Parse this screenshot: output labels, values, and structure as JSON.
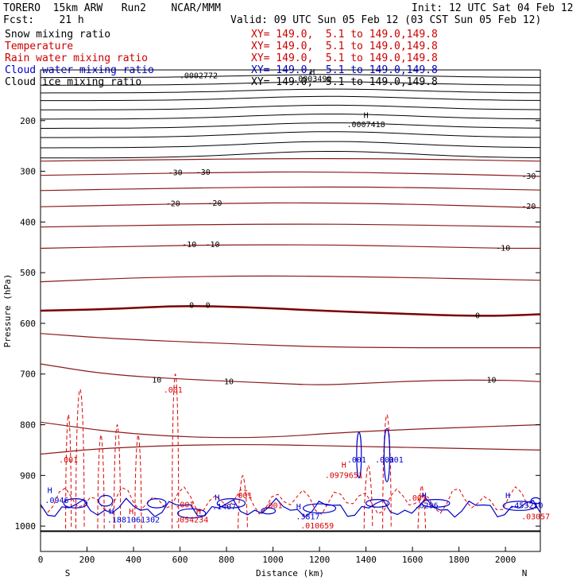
{
  "header": {
    "model": "TORERO  15km ARW   Run2    NCAR/MMM",
    "init": "Init: 12 UTC Sat 04 Feb 12",
    "fcst": "Fcst:    21 h",
    "valid": "Valid: 09 UTC Sun 05 Feb 12 (03 CST Sun 05 Feb 12)"
  },
  "fields": [
    {
      "name": "Snow mixing ratio",
      "xy": "XY= 149.0,  5.1 to 149.0,149.8",
      "color": "#000000"
    },
    {
      "name": "Temperature",
      "xy": "XY= 149.0,  5.1 to 149.0,149.8",
      "color": "#cc0000"
    },
    {
      "name": "Rain water mixing ratio",
      "xy": "XY= 149.0,  5.1 to 149.0,149.8",
      "color": "#cc0000"
    },
    {
      "name": "Cloud water mixing ratio",
      "xy": "XY= 149.0,  5.1 to 149.0,149.8",
      "color": "#0000cc"
    },
    {
      "name": "Cloud ice mixing ratio",
      "xy": "XY= 149.0,  5.1 to 149.0,149.8",
      "color": "#000000"
    }
  ],
  "colors": {
    "temperature_contour": "#8b1a1a",
    "zero_isotherm": "#7a0000",
    "rain": "#dd0000",
    "cloud_water": "#0000cc",
    "ground": "#000000"
  },
  "chart_data": {
    "type": "line",
    "xlabel": "Distance (km)",
    "ylabel": "Pressure (hPa)",
    "xlim": [
      0,
      2150
    ],
    "ylim": [
      1050,
      100
    ],
    "x_ticks": [
      0,
      200,
      400,
      600,
      800,
      1000,
      1200,
      1400,
      1600,
      1800,
      2000
    ],
    "y_ticks": [
      200,
      300,
      400,
      500,
      600,
      700,
      800,
      900,
      1000
    ],
    "orientation_left": "S",
    "orientation_right": "N",
    "temperature_isotherms": [
      {
        "value": 10,
        "label": "10",
        "x": [
          0,
          300,
          700,
          1000,
          1200,
          1400,
          1700,
          2000,
          2150
        ],
        "p": [
          680,
          702,
          712,
          718,
          722,
          718,
          712,
          712,
          715
        ]
      },
      {
        "value": 0,
        "label": "0",
        "x": [
          0,
          300,
          600,
          900,
          1200,
          1500,
          1800,
          2000,
          2150
        ],
        "p": [
          575,
          572,
          565,
          568,
          575,
          580,
          585,
          585,
          582
        ]
      },
      {
        "value": -10,
        "label": "-10",
        "x": [
          0,
          400,
          800,
          1200,
          1600,
          2000,
          2150
        ],
        "p": [
          452,
          448,
          445,
          445,
          448,
          452,
          452
        ]
      },
      {
        "value": -20,
        "label": "-20",
        "x": [
          0,
          400,
          800,
          1200,
          1600,
          2000,
          2150
        ],
        "p": [
          370,
          366,
          363,
          362,
          365,
          370,
          372
        ]
      },
      {
        "value": -30,
        "label": "-30",
        "x": [
          0,
          400,
          800,
          1200,
          1600,
          2000,
          2150
        ],
        "p": [
          308,
          305,
          302,
          301,
          304,
          308,
          310
        ]
      }
    ],
    "temperature_labels": [
      {
        "text": "10",
        "x": 500,
        "p": 712
      },
      {
        "text": "10",
        "x": 810,
        "p": 715
      },
      {
        "text": "10",
        "x": 1940,
        "p": 712
      },
      {
        "text": "0",
        "x": 650,
        "p": 565
      },
      {
        "text": "0",
        "x": 720,
        "p": 565
      },
      {
        "text": "0",
        "x": 1880,
        "p": 585
      },
      {
        "text": "-10",
        "x": 640,
        "p": 445
      },
      {
        "text": "-10",
        "x": 740,
        "p": 445
      },
      {
        "text": "-10",
        "x": 1990,
        "p": 452
      },
      {
        "text": "-20",
        "x": 570,
        "p": 364
      },
      {
        "text": "-20",
        "x": 750,
        "p": 363
      },
      {
        "text": "-20",
        "x": 2100,
        "p": 370
      },
      {
        "text": "-30",
        "x": 580,
        "p": 303
      },
      {
        "text": "-30",
        "x": 700,
        "p": 302
      },
      {
        "text": "-30",
        "x": 2100,
        "p": 310
      }
    ],
    "snow_annotations": [
      {
        "text": "H",
        "x": 1400,
        "p": 190
      },
      {
        "text": ".0007418",
        "x": 1400,
        "p": 208
      },
      {
        "text": "H",
        "x": 1170,
        "p": 105
      },
      {
        "text": ".0003499",
        "x": 1170,
        "p": 118
      },
      {
        "text": ".0002772",
        "x": 680,
        "p": 112
      }
    ],
    "rain_annotations": [
      {
        "text": ".001",
        "x": 120,
        "p": 870
      },
      {
        "text": ".001",
        "x": 570,
        "p": 732
      },
      {
        "text": "H",
        "x": 1305,
        "p": 880
      },
      {
        "text": ".0979651",
        "x": 1305,
        "p": 900
      },
      {
        "text": ".001",
        "x": 870,
        "p": 940
      },
      {
        "text": ".001",
        "x": 1000,
        "p": 960
      },
      {
        "text": ".001",
        "x": 620,
        "p": 958
      },
      {
        "text": "H",
        "x": 390,
        "p": 972
      },
      {
        "text": "H",
        "x": 680,
        "p": 972
      },
      {
        "text": ".054234",
        "x": 650,
        "p": 988
      },
      {
        "text": ".010659",
        "x": 1190,
        "p": 1000
      },
      {
        "text": ".001",
        "x": 1620,
        "p": 945
      },
      {
        "text": ".03057",
        "x": 2130,
        "p": 982
      }
    ],
    "cloud_annotations": [
      {
        "text": "H",
        "x": 40,
        "p": 930
      },
      {
        "text": ".0946",
        "x": 70,
        "p": 950
      },
      {
        "text": ".001",
        "x": 1360,
        "p": 870
      },
      {
        "text": ".001",
        "x": 1480,
        "p": 870
      },
      {
        "text": ".001",
        "x": 1520,
        "p": 870
      },
      {
        "text": "H",
        "x": 760,
        "p": 944
      },
      {
        "text": ".1407",
        "x": 790,
        "p": 962
      },
      {
        "text": "H",
        "x": 305,
        "p": 972
      },
      {
        "text": ".1881061302",
        "x": 400,
        "p": 988
      },
      {
        "text": "H",
        "x": 1110,
        "p": 962
      },
      {
        "text": ".3817",
        "x": 1150,
        "p": 982
      },
      {
        "text": "H",
        "x": 1650,
        "p": 940
      },
      {
        "text": ".6296",
        "x": 1660,
        "p": 960
      },
      {
        "text": "H",
        "x": 2010,
        "p": 940
      },
      {
        "text": ".453210",
        "x": 2090,
        "p": 960
      }
    ]
  }
}
